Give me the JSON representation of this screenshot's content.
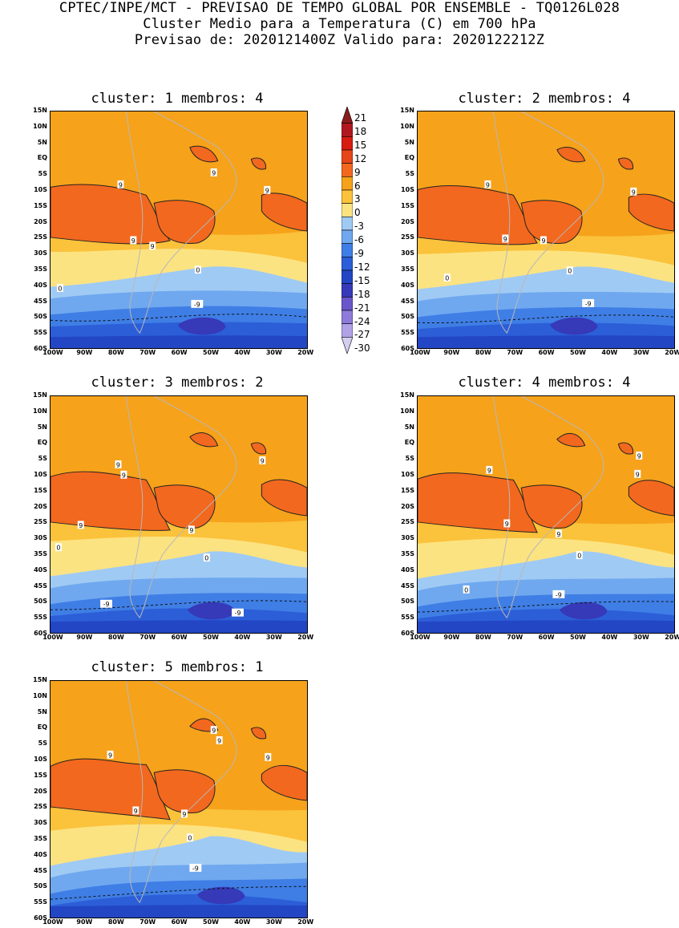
{
  "header": {
    "line1": "CPTEC/INPE/MCT - PREVISAO DE TEMPO GLOBAL POR ENSEMBLE - TQ0126L028",
    "line2": "Cluster Medio para a Temperatura (C) em 700 hPa",
    "line3": "Previsao de: 2020121400Z   Valido para: 2020122212Z"
  },
  "lat_ticks": [
    "15N",
    "10N",
    "5N",
    "EQ",
    "5S",
    "10S",
    "15S",
    "20S",
    "25S",
    "30S",
    "35S",
    "40S",
    "45S",
    "50S",
    "55S",
    "60S"
  ],
  "lon_ticks": [
    "100W",
    "90W",
    "80W",
    "70W",
    "60W",
    "50W",
    "40W",
    "30W",
    "20W"
  ],
  "colorbar": {
    "levels": [
      "21",
      "18",
      "15",
      "12",
      "9",
      "6",
      "3",
      "0",
      "-3",
      "-6",
      "-9",
      "-12",
      "-15",
      "-18",
      "-21",
      "-24",
      "-27",
      "-30"
    ],
    "colors": [
      "#8b1a1a",
      "#b0171f",
      "#d71d12",
      "#e6461a",
      "#f2681e",
      "#f6a21b",
      "#fbc23b",
      "#fce382",
      "#9fcaf4",
      "#6fa8ef",
      "#3f7ee5",
      "#2c5ed8",
      "#2346c4",
      "#3639b8",
      "#6a57cc",
      "#8e7bd9",
      "#b0a2e5",
      "#d3cdf0"
    ]
  },
  "panels": [
    {
      "title": "cluster: 1   membros: 4",
      "labels": [
        {
          "t": "9"
        },
        {
          "t": "9"
        },
        {
          "t": "9"
        },
        {
          "t": "9"
        },
        {
          "t": "9"
        },
        {
          "t": "0"
        },
        {
          "t": "0"
        },
        {
          "t": "-9"
        }
      ]
    },
    {
      "title": "cluster: 2   membros: 4",
      "labels": [
        {
          "t": "9"
        },
        {
          "t": "9"
        },
        {
          "t": "9"
        },
        {
          "t": "9"
        },
        {
          "t": "0"
        },
        {
          "t": "0"
        },
        {
          "t": "-9"
        }
      ]
    },
    {
      "title": "cluster: 3   membros: 2",
      "labels": [
        {
          "t": "9"
        },
        {
          "t": "9"
        },
        {
          "t": "9"
        },
        {
          "t": "9"
        },
        {
          "t": "9"
        },
        {
          "t": "0"
        },
        {
          "t": "0"
        },
        {
          "t": "-9"
        },
        {
          "t": "-9"
        }
      ]
    },
    {
      "title": "cluster: 4   membros: 4",
      "labels": [
        {
          "t": "9"
        },
        {
          "t": "9"
        },
        {
          "t": "9"
        },
        {
          "t": "9"
        },
        {
          "t": "9"
        },
        {
          "t": "0"
        },
        {
          "t": "0"
        },
        {
          "t": "-9"
        }
      ]
    },
    {
      "title": "cluster: 5   membros: 1",
      "labels": [
        {
          "t": "9"
        },
        {
          "t": "9"
        },
        {
          "t": "9"
        },
        {
          "t": "9"
        },
        {
          "t": "9"
        },
        {
          "t": "9"
        },
        {
          "t": "0"
        },
        {
          "t": "-9"
        }
      ]
    }
  ]
}
